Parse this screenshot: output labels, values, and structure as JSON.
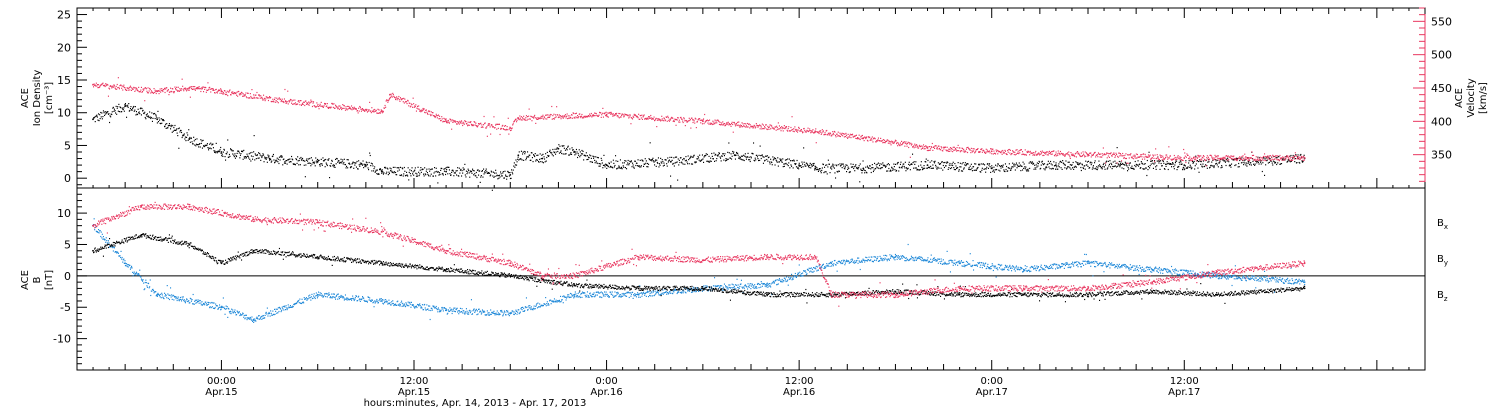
{
  "colors": {
    "black": "#000000",
    "pink": "#e8365f",
    "blue": "#1e88d8"
  },
  "chart_data": [
    {
      "type": "scatter",
      "panel": "top",
      "ylabel_left": [
        "ACE",
        "Ion Density",
        "[cm⁻³]"
      ],
      "ylabel_right": [
        "ACE",
        "Velocity",
        "[km/s]"
      ],
      "ylim_left": [
        -1.5,
        26
      ],
      "ylim_right": [
        300,
        570
      ],
      "yticks_left": [
        "0",
        "5",
        "10",
        "15",
        "20",
        "25"
      ],
      "yticks_right": [
        "350",
        "400",
        "450",
        "500",
        "550"
      ],
      "series": [
        {
          "color": "black",
          "axis": "left",
          "x": [
            "2013-04-14T16:00",
            "2013-04-14T18:00",
            "2013-04-14T20:00",
            "2013-04-14T22:00",
            "2013-04-15T00:00",
            "2013-04-15T03:00",
            "2013-04-15T06:00",
            "2013-04-15T09:00",
            "2013-04-15T10:00",
            "2013-04-15T14:00",
            "2013-04-15T18:00",
            "2013-04-15T18:30",
            "2013-04-15T20:00",
            "2013-04-15T21:00",
            "2013-04-15T22:00",
            "2013-04-16T00:00",
            "2013-04-16T04:00",
            "2013-04-16T08:00",
            "2013-04-16T12:00",
            "2013-04-16T13:00",
            "2013-04-16T16:00",
            "2013-04-16T20:00",
            "2013-04-17T00:00",
            "2013-04-17T04:00",
            "2013-04-17T08:00",
            "2013-04-17T12:00",
            "2013-04-17T16:00",
            "2013-04-17T19:30"
          ],
          "y": [
            9,
            11,
            9,
            6,
            4,
            3,
            2.5,
            2,
            1,
            1,
            0.5,
            3.5,
            3,
            4.5,
            4,
            2,
            2.5,
            3.5,
            2,
            1.5,
            1.5,
            2,
            1.5,
            2,
            2,
            2,
            2.5,
            3
          ]
        },
        {
          "color": "pink",
          "axis": "right",
          "x": [
            "2013-04-14T16:00",
            "2013-04-14T20:00",
            "2013-04-14T22:00",
            "2013-04-15T00:00",
            "2013-04-15T04:00",
            "2013-04-15T08:00",
            "2013-04-15T10:00",
            "2013-04-15T10:30",
            "2013-04-15T14:00",
            "2013-04-15T18:00",
            "2013-04-15T18:30",
            "2013-04-16T00:00",
            "2013-04-16T06:00",
            "2013-04-16T13:00",
            "2013-04-16T16:00",
            "2013-04-16T20:00",
            "2013-04-17T00:00",
            "2013-04-17T06:00",
            "2013-04-17T12:00",
            "2013-04-17T16:00",
            "2013-04-17T19:30"
          ],
          "y": [
            455,
            445,
            450,
            445,
            430,
            420,
            415,
            440,
            400,
            390,
            405,
            410,
            400,
            385,
            375,
            360,
            355,
            350,
            345,
            345,
            345
          ]
        }
      ]
    },
    {
      "type": "scatter",
      "panel": "bottom",
      "ylabel_left": [
        "ACE",
        "B",
        "[nT]"
      ],
      "ylim": [
        -15,
        14
      ],
      "yticks": [
        "-10",
        "-5",
        "0",
        "5",
        "10"
      ],
      "zero_line": true,
      "legend": {
        "placement": "right",
        "entries": [
          {
            "base": "B",
            "sub": "x",
            "color": "black"
          },
          {
            "base": "B",
            "sub": "y",
            "color": "blue"
          },
          {
            "base": "B",
            "sub": "z",
            "color": "pink"
          }
        ]
      },
      "series": [
        {
          "color": "black",
          "x": [
            "2013-04-14T16:00",
            "2013-04-14T19:00",
            "2013-04-14T22:00",
            "2013-04-15T00:00",
            "2013-04-15T02:00",
            "2013-04-15T06:00",
            "2013-04-15T10:00",
            "2013-04-15T14:00",
            "2013-04-15T18:00",
            "2013-04-15T22:00",
            "2013-04-16T02:00",
            "2013-04-16T06:00",
            "2013-04-16T10:00",
            "2013-04-16T14:00",
            "2013-04-16T18:00",
            "2013-04-16T22:00",
            "2013-04-17T02:00",
            "2013-04-17T06:00",
            "2013-04-17T10:00",
            "2013-04-17T14:00",
            "2013-04-17T19:30"
          ],
          "y": [
            4,
            6.5,
            5,
            2,
            4,
            3,
            2,
            1,
            0,
            -1.5,
            -2,
            -2,
            -3,
            -3,
            -2.5,
            -3,
            -3,
            -3,
            -2.5,
            -3,
            -2
          ]
        },
        {
          "color": "blue",
          "x": [
            "2013-04-14T16:00",
            "2013-04-14T18:00",
            "2013-04-14T20:00",
            "2013-04-15T00:00",
            "2013-04-15T02:00",
            "2013-04-15T06:00",
            "2013-04-15T10:00",
            "2013-04-15T14:00",
            "2013-04-15T18:00",
            "2013-04-15T22:00",
            "2013-04-16T02:00",
            "2013-04-16T06:00",
            "2013-04-16T10:00",
            "2013-04-16T14:00",
            "2013-04-16T18:00",
            "2013-04-16T22:00",
            "2013-04-17T02:00",
            "2013-04-17T06:00",
            "2013-04-17T10:00",
            "2013-04-17T14:00",
            "2013-04-17T19:30"
          ],
          "y": [
            8,
            2,
            -3,
            -5,
            -7,
            -3,
            -4,
            -5.5,
            -6,
            -3,
            -3,
            -2,
            -1.5,
            2,
            3,
            2,
            1,
            2,
            1,
            0,
            -1
          ]
        },
        {
          "color": "pink",
          "x": [
            "2013-04-14T16:00",
            "2013-04-14T19:00",
            "2013-04-14T22:00",
            "2013-04-15T02:00",
            "2013-04-15T06:00",
            "2013-04-15T10:00",
            "2013-04-15T14:00",
            "2013-04-15T18:00",
            "2013-04-15T20:00",
            "2013-04-15T22:00",
            "2013-04-16T02:00",
            "2013-04-16T06:00",
            "2013-04-16T10:00",
            "2013-04-16T13:00",
            "2013-04-16T14:00",
            "2013-04-16T18:00",
            "2013-04-16T22:00",
            "2013-04-17T02:00",
            "2013-04-17T06:00",
            "2013-04-17T10:00",
            "2013-04-17T14:00",
            "2013-04-17T19:30"
          ],
          "y": [
            8,
            11,
            11,
            9,
            8.5,
            7,
            4,
            2,
            0,
            0,
            3,
            2.5,
            3,
            3,
            -3,
            -3,
            -2,
            -2,
            -2,
            -1,
            0.5,
            2
          ]
        }
      ]
    }
  ],
  "xaxis": {
    "range": [
      "2013-04-14T15:00",
      "2013-04-18T03:00"
    ],
    "ticks": [
      {
        "time": "00:00",
        "date": "Apr.15"
      },
      {
        "time": "12:00",
        "date": "Apr.15"
      },
      {
        "time": "0:00",
        "date": "Apr.16"
      },
      {
        "time": "12:00",
        "date": "Apr.16"
      },
      {
        "time": "0:00",
        "date": "Apr.17"
      },
      {
        "time": "12:00",
        "date": "Apr.17"
      }
    ],
    "caption": "hours:minutes, Apr. 14, 2013 - Apr. 17, 2013"
  }
}
